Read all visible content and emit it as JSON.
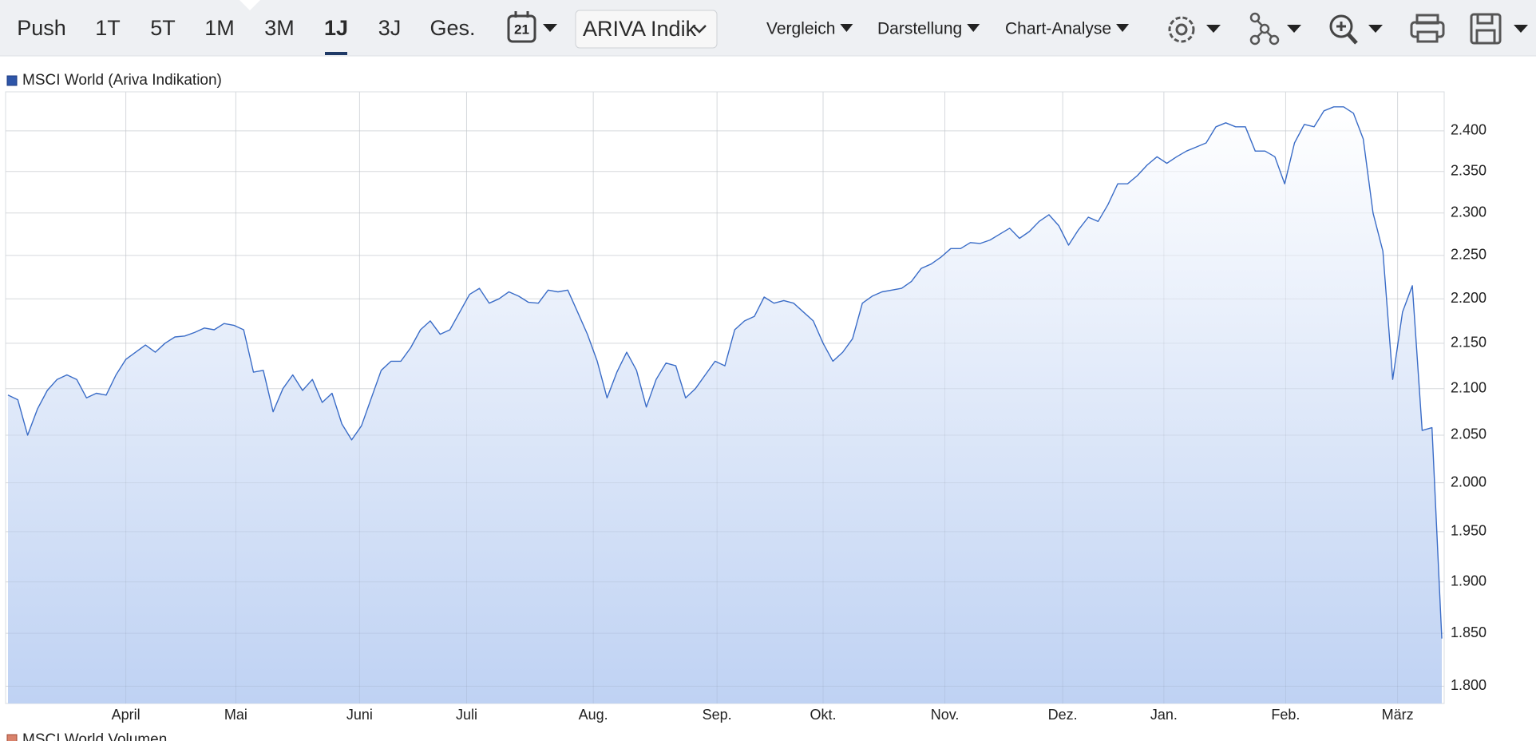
{
  "toolbar": {
    "ranges": [
      "Push",
      "1T",
      "5T",
      "1M",
      "3M",
      "1J",
      "3J",
      "Ges."
    ],
    "active": 5,
    "calendar_day": "21",
    "source_select": "ARIVA Indik",
    "menus": [
      "Vergleich",
      "Darstellung",
      "Chart-Analyse"
    ]
  },
  "chart_data": {
    "type": "line",
    "series": [
      {
        "name": "MSCI World (Ariva Indikation)",
        "color": "#3a6cc7",
        "values": [
          2093,
          2088,
          2050,
          2078,
          2098,
          2110,
          2115,
          2110,
          2090,
          2095,
          2093,
          2115,
          2132,
          2140,
          2148,
          2140,
          2150,
          2157,
          2158,
          2162,
          2167,
          2165,
          2172,
          2170,
          2165,
          2118,
          2120,
          2075,
          2100,
          2115,
          2098,
          2110,
          2085,
          2095,
          2062,
          2045,
          2060,
          2090,
          2120,
          2130,
          2130,
          2145,
          2165,
          2175,
          2160,
          2165,
          2185,
          2205,
          2212,
          2195,
          2200,
          2208,
          2203,
          2196,
          2195,
          2210,
          2208,
          2210,
          2185,
          2160,
          2130,
          2090,
          2118,
          2140,
          2120,
          2080,
          2110,
          2128,
          2125,
          2090,
          2100,
          2115,
          2130,
          2125,
          2165,
          2175,
          2180,
          2202,
          2195,
          2198,
          2195,
          2185,
          2175,
          2150,
          2130,
          2140,
          2155,
          2195,
          2203,
          2208,
          2210,
          2212,
          2220,
          2235,
          2240,
          2248,
          2258,
          2258,
          2265,
          2264,
          2268,
          2275,
          2282,
          2270,
          2278,
          2290,
          2298,
          2285,
          2262,
          2280,
          2295,
          2290,
          2310,
          2335,
          2335,
          2345,
          2358,
          2368,
          2360,
          2368,
          2375,
          2380,
          2385,
          2405,
          2410,
          2405,
          2405,
          2375,
          2375,
          2368,
          2335,
          2385,
          2408,
          2405,
          2425,
          2430,
          2430,
          2422,
          2390,
          2300,
          2255,
          2110,
          2185,
          2215,
          2055,
          2058,
          1845
        ]
      }
    ],
    "xlim": [
      0,
      146
    ],
    "xticks": [
      {
        "value": 12.0,
        "label": "April"
      },
      {
        "value": 23.2,
        "label": "Mai"
      },
      {
        "value": 35.8,
        "label": "Juni"
      },
      {
        "value": 46.7,
        "label": "Juli"
      },
      {
        "value": 59.6,
        "label": "Aug."
      },
      {
        "value": 72.2,
        "label": "Sep."
      },
      {
        "value": 83.0,
        "label": "Okt."
      },
      {
        "value": 95.4,
        "label": "Nov."
      },
      {
        "value": 107.4,
        "label": "Dez."
      },
      {
        "value": 117.7,
        "label": "Jan."
      },
      {
        "value": 130.1,
        "label": "Feb."
      },
      {
        "value": 141.5,
        "label": "März"
      }
    ],
    "ylim": [
      1784,
      2449
    ],
    "log_y": true,
    "yticks": [
      {
        "value": 1800,
        "label": "1.800"
      },
      {
        "value": 1850,
        "label": "1.850"
      },
      {
        "value": 1900,
        "label": "1.900"
      },
      {
        "value": 1950,
        "label": "1.950"
      },
      {
        "value": 2000,
        "label": "2.000"
      },
      {
        "value": 2050,
        "label": "2.050"
      },
      {
        "value": 2100,
        "label": "2.100"
      },
      {
        "value": 2150,
        "label": "2.150"
      },
      {
        "value": 2200,
        "label": "2.200"
      },
      {
        "value": 2250,
        "label": "2.250"
      },
      {
        "value": 2300,
        "label": "2.300"
      },
      {
        "value": 2350,
        "label": "2.350"
      },
      {
        "value": 2400,
        "label": "2.400"
      }
    ],
    "grid": true,
    "fill_area": true,
    "legend_color": "#2e55a8"
  },
  "volume_panel": {
    "legend": "MSCI World Volumen",
    "color": "#d9826b"
  }
}
